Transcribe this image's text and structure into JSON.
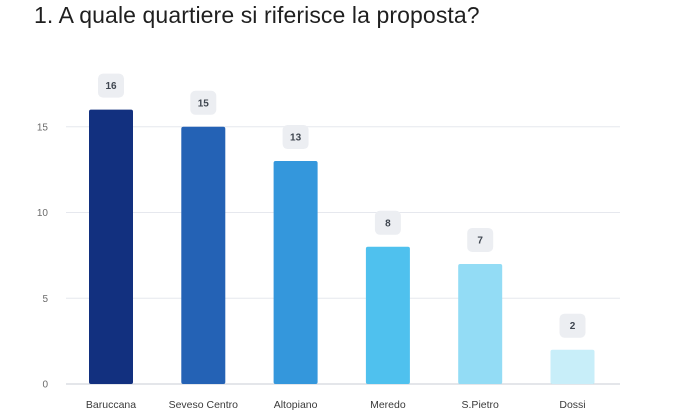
{
  "question": {
    "title": "1. A quale quartiere si riferisce la proposta?"
  },
  "chart_data": {
    "type": "bar",
    "title": "",
    "xlabel": "",
    "ylabel": "",
    "categories": [
      "Baruccana",
      "Seveso Centro",
      "Altopiano",
      "Meredo",
      "S.Pietro",
      "Dossi"
    ],
    "values": [
      16,
      15,
      13,
      8,
      7,
      2
    ],
    "colors": [
      "#12307f",
      "#2462b5",
      "#3497dc",
      "#4fc1ee",
      "#93dcf5",
      "#c8eef9"
    ],
    "ylim": [
      0,
      17
    ],
    "yticks": [
      0,
      5,
      10,
      15
    ],
    "grid": true,
    "legend": "none",
    "data_labels": true
  }
}
